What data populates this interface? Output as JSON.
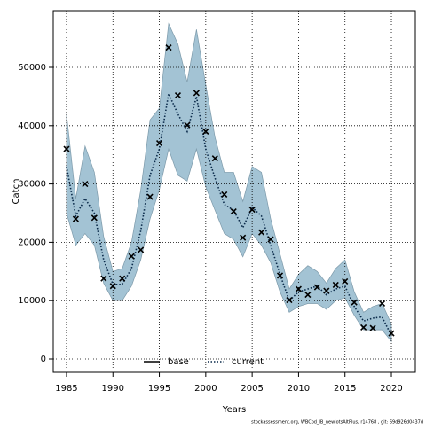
{
  "chart_data": {
    "type": "line",
    "xlabel": "Years",
    "ylabel": "Catch",
    "footer": "stockassessment.org, WBCod_IB_newlotsAltPlus, r14768 , git: 69d926d0437d",
    "x": [
      1985,
      1986,
      1987,
      1988,
      1989,
      1990,
      1991,
      1992,
      1993,
      1994,
      1995,
      1996,
      1997,
      1998,
      1999,
      2000,
      2001,
      2002,
      2003,
      2004,
      2005,
      2006,
      2007,
      2008,
      2009,
      2010,
      2011,
      2012,
      2013,
      2014,
      2015,
      2016,
      2017,
      2018,
      2019,
      2020
    ],
    "observed": {
      "color": "#000000",
      "values": [
        36000,
        24000,
        30000,
        24200,
        13800,
        12500,
        13800,
        17600,
        18700,
        27800,
        37000,
        53400,
        45200,
        40100,
        45600,
        39000,
        34400,
        28200,
        25300,
        20800,
        25600,
        21700,
        20500,
        14300,
        10100,
        12000,
        11000,
        12300,
        11700,
        12700,
        13300,
        9700,
        5400,
        5300,
        9500,
        4400
      ]
    },
    "band": {
      "color": "#a3c3d4",
      "upper": [
        42000,
        27500,
        36500,
        32000,
        21000,
        15000,
        15500,
        20000,
        29000,
        41000,
        43000,
        57500,
        54000,
        47500,
        56500,
        47000,
        38000,
        32000,
        32000,
        27000,
        33000,
        32000,
        24000,
        18000,
        12000,
        14500,
        16000,
        15000,
        13000,
        15500,
        17000,
        11500,
        8000,
        9000,
        9500,
        6000
      ],
      "lower": [
        25000,
        19500,
        21500,
        19500,
        13000,
        10000,
        10000,
        12500,
        17000,
        24000,
        29000,
        36000,
        31500,
        30500,
        36000,
        29500,
        25500,
        21500,
        20500,
        17500,
        21500,
        19500,
        16500,
        11500,
        8000,
        9000,
        9500,
        9500,
        8500,
        10000,
        10500,
        7500,
        5000,
        5000,
        5000,
        3000
      ]
    },
    "series": [
      {
        "name": "base",
        "color": "#000000",
        "dash": "solid"
      },
      {
        "name": "current",
        "color": "#0a2a4a",
        "dash": "dotted",
        "values": [
          33000,
          24500,
          27500,
          25000,
          17000,
          12800,
          12800,
          15500,
          22000,
          31500,
          36000,
          45500,
          42000,
          39000,
          45000,
          36000,
          31000,
          26500,
          25500,
          22500,
          26000,
          24500,
          19500,
          14500,
          10000,
          11500,
          12000,
          12500,
          11000,
          12000,
          12500,
          9000,
          6500,
          7000,
          7200,
          4000
        ]
      }
    ],
    "xlim": [
      1983.57,
      2022.58
    ],
    "ylim": [
      -2280,
      59726
    ],
    "xticks": [
      1985,
      1990,
      1995,
      2000,
      2005,
      2010,
      2015,
      2020
    ],
    "yticks": [
      0,
      10000,
      20000,
      30000,
      40000,
      50000
    ],
    "grid": true,
    "legend": "bottom"
  }
}
